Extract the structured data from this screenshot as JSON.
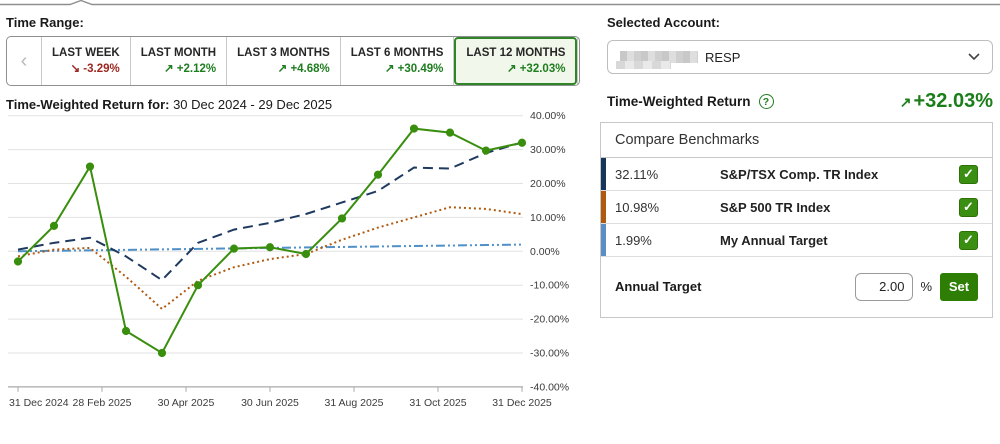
{
  "time_range": {
    "label": "Time Range:",
    "prev_arrow": "‹",
    "next_arrow": "›",
    "tabs": [
      {
        "label": "LAST WEEK",
        "arrow": "↘",
        "value": "-3.29%",
        "direction": "down",
        "selected": false
      },
      {
        "label": "LAST MONTH",
        "arrow": "↗",
        "value": "+2.12%",
        "direction": "up",
        "selected": false
      },
      {
        "label": "LAST 3 MONTHS",
        "arrow": "↗",
        "value": "+4.68%",
        "direction": "up",
        "selected": false
      },
      {
        "label": "LAST 6 MONTHS",
        "arrow": "↗",
        "value": "+30.49%",
        "direction": "up",
        "selected": false
      },
      {
        "label": "LAST 12 MONTHS",
        "arrow": "↗",
        "value": "+32.03%",
        "direction": "up",
        "selected": true
      }
    ]
  },
  "chart_header": {
    "label": "Time-Weighted Return for:",
    "range": " 30 Dec 2024 - 29 Dec 2025"
  },
  "chart_data": {
    "type": "line",
    "title": "Time-Weighted Return for: 30 Dec 2024 - 29 Dec 2025",
    "x_tick_labels": [
      "31 Dec 2024",
      "28 Feb 2025",
      "30 Apr 2025",
      "30 Jun 2025",
      "31 Aug 2025",
      "31 Oct 2025",
      "31 Dec 2025"
    ],
    "y_tick_labels": [
      "40.00%",
      "30.00%",
      "20.00%",
      "10.00%",
      "0.00%",
      "-10.00%",
      "-20.00%",
      "-30.00%",
      "-40.00%"
    ],
    "y_tick_values": [
      40,
      30,
      20,
      10,
      0,
      -10,
      -20,
      -30,
      -40
    ],
    "ylim": [
      -40,
      40
    ],
    "grid": true,
    "legend_position": "none",
    "series": [
      {
        "name": "Portfolio (RESP)",
        "style": "solid",
        "marker": "circle",
        "color": "#3a8e0e",
        "values": [
          -3,
          7.5,
          25,
          -23.5,
          -30,
          -10,
          0.8,
          1.2,
          -0.8,
          9.7,
          22.6,
          36.2,
          35,
          29.7,
          32.03
        ]
      },
      {
        "name": "S&P/TSX Comp. TR Index",
        "style": "dashed",
        "marker": "none",
        "color": "#1f3a5f",
        "values": [
          0.5,
          2.5,
          4,
          -1.5,
          -8.5,
          2.5,
          6.4,
          8.4,
          11,
          14.4,
          17.8,
          24.7,
          24.4,
          29,
          32.11
        ]
      },
      {
        "name": "S&P 500 TR Index",
        "style": "dotted",
        "marker": "none",
        "color": "#b05a10",
        "values": [
          -1.5,
          0.5,
          1,
          -7.5,
          -17,
          -8.7,
          -4.7,
          -2.3,
          -0.8,
          3.4,
          7,
          10,
          13,
          12.5,
          10.98
        ]
      },
      {
        "name": "My Annual Target",
        "style": "dashdotdot",
        "marker": "none",
        "color": "#4f90c8",
        "values": [
          0,
          0.14,
          0.28,
          0.43,
          0.57,
          0.71,
          0.85,
          1.0,
          1.14,
          1.28,
          1.42,
          1.57,
          1.71,
          1.85,
          1.99
        ]
      }
    ]
  },
  "account": {
    "label": "Selected Account:",
    "name_visible": "RESP",
    "caret": "⌄"
  },
  "twr": {
    "label": "Time-Weighted Return",
    "help_glyph": "?",
    "arrow": "↗",
    "value": "+32.03%"
  },
  "benchmarks": {
    "title": "Compare Benchmarks",
    "check_glyph": "✓",
    "rows": [
      {
        "value": "32.11%",
        "name": "S&P/TSX Comp. TR Index",
        "color": "#17365d",
        "checked": true
      },
      {
        "value": "10.98%",
        "name": "S&P 500 TR Index",
        "color": "#b05a10",
        "checked": true
      },
      {
        "value": "1.99%",
        "name": "My Annual Target",
        "color": "#5b8ec4",
        "checked": true
      }
    ],
    "annual_target": {
      "label": "Annual Target",
      "value": "2.00",
      "unit": "%",
      "button_label": "Set"
    }
  }
}
